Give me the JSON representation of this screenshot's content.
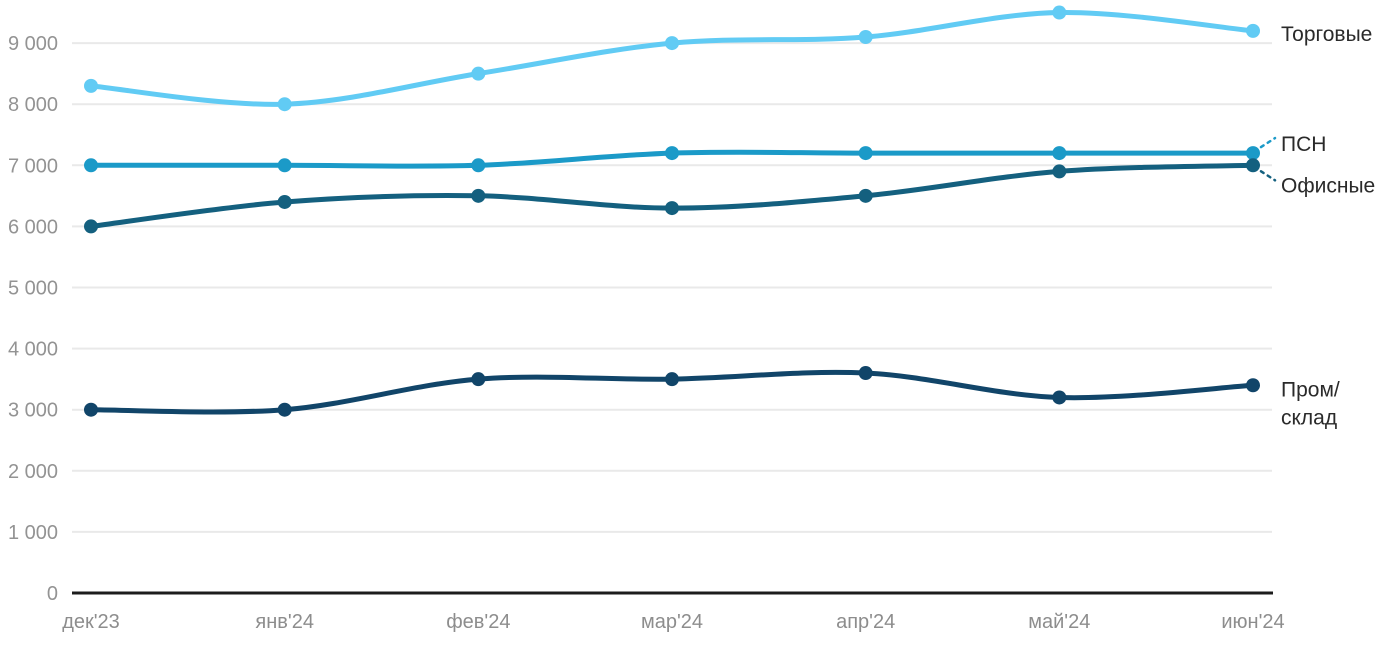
{
  "chart_data": {
    "type": "line",
    "title": "",
    "x": [
      "дек'23",
      "янв'24",
      "фев'24",
      "мар'24",
      "апр'24",
      "май'24",
      "июн'24"
    ],
    "series": [
      {
        "name": "Торговые",
        "values": [
          8300,
          8000,
          8500,
          9000,
          9100,
          9500,
          9200
        ],
        "color": "#61CBF4",
        "label_lines": [
          "Торговые"
        ],
        "label_dy": 3,
        "leader": false
      },
      {
        "name": "ПСН",
        "values": [
          7000,
          7000,
          7000,
          7200,
          7200,
          7200,
          7200
        ],
        "color": "#1B9AC8",
        "label_lines": [
          "ПСН"
        ],
        "label_dy": -9,
        "leader": true
      },
      {
        "name": "Офисные",
        "values": [
          6000,
          6400,
          6500,
          6300,
          6500,
          6900,
          7000
        ],
        "color": "#14607F",
        "label_lines": [
          "Офисные"
        ],
        "label_dy": 20,
        "leader": true
      },
      {
        "name": "Пром/склад",
        "values": [
          3000,
          3000,
          3500,
          3500,
          3600,
          3200,
          3400
        ],
        "color": "#114569",
        "label_lines": [
          "Пром/",
          "склад"
        ],
        "label_dy": 4,
        "leader": false
      }
    ],
    "yticks": [
      0,
      1000,
      2000,
      3000,
      4000,
      5000,
      6000,
      7000,
      8000,
      9000
    ],
    "ytick_labels": [
      "0",
      "1 000",
      "2 000",
      "3 000",
      "4 000",
      "5 000",
      "6 000",
      "7 000",
      "8 000",
      "9 000"
    ],
    "ylim": [
      0,
      9600
    ],
    "grid": true,
    "legend_position": "right-end-labels"
  },
  "colors": {
    "background": "#ffffff",
    "grid": "#e9e9e9",
    "axis": "#1c1c1c",
    "y_tick_label": "#939393",
    "x_tick_label": "#8d8d8d",
    "series_label": "#2a2a2a"
  }
}
